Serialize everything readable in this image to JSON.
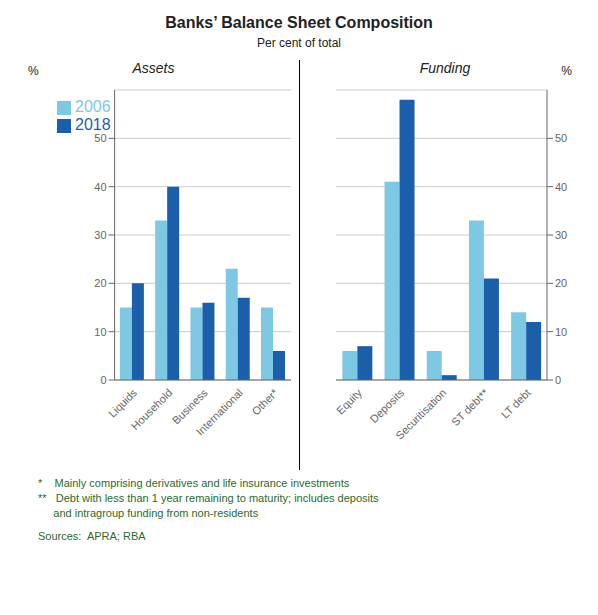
{
  "title": "Banks’ Balance Sheet Composition",
  "subtitle": "Per cent of total",
  "footnotes": [
    "*    Mainly comprising derivatives and life insurance investments",
    "**   Debt with less than 1 year remaining to maturity; includes deposits",
    "     and intragroup funding from non-residents",
    "Sources:  APRA; RBA"
  ],
  "chart_data": [
    {
      "type": "bar",
      "title": "Assets",
      "categories": [
        "Liquids",
        "Household",
        "Business",
        "International",
        "Other*"
      ],
      "series": [
        {
          "name": "2006",
          "color": "#7EC8E3",
          "values": [
            15,
            33,
            15,
            23,
            15
          ]
        },
        {
          "name": "2018",
          "color": "#1B5FAB",
          "values": [
            20,
            40,
            16,
            17,
            6
          ]
        }
      ],
      "ylabel": "%",
      "ylim": [
        0,
        60
      ],
      "yticks": [
        0,
        10,
        20,
        30,
        40,
        50
      ],
      "grid": true,
      "legend": "upper left"
    },
    {
      "type": "bar",
      "title": "Funding",
      "categories": [
        "Equity",
        "Deposits",
        "Securitisation",
        "ST debt**",
        "LT debt"
      ],
      "series": [
        {
          "name": "2006",
          "color": "#7EC8E3",
          "values": [
            6,
            41,
            6,
            33,
            14
          ]
        },
        {
          "name": "2018",
          "color": "#1B5FAB",
          "values": [
            7,
            58,
            1,
            21,
            12
          ]
        }
      ],
      "ylabel": "%",
      "ylim": [
        0,
        60
      ],
      "yticks": [
        0,
        10,
        20,
        30,
        40,
        50
      ],
      "grid": true
    }
  ]
}
